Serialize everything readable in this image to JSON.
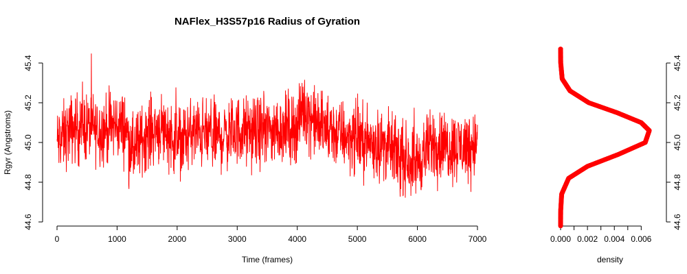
{
  "chart_data": [
    {
      "type": "line",
      "title": "NAFlex_H3S57p16 Radius of Gyration",
      "xlabel": "Time (frames)",
      "ylabel": "Rgyr (Angstroms)",
      "xlim": [
        0,
        7000
      ],
      "ylim": [
        44.6,
        45.4
      ],
      "x_ticks": [
        "0",
        "1000",
        "2000",
        "3000",
        "4000",
        "5000",
        "6000",
        "7000"
      ],
      "y_ticks": [
        "44.6",
        "44.8",
        "45.0",
        "45.2",
        "45.4"
      ],
      "line_color": "#ff0000",
      "series": [
        {
          "x": [
            0,
            250,
            500,
            750,
            1000,
            1150,
            1250,
            1500,
            1750,
            2000,
            2250,
            2500,
            2750,
            3000,
            3250,
            3500,
            3750,
            4000,
            4100,
            4200,
            4300,
            4500,
            4750,
            5000,
            5250,
            5500,
            5750,
            6000,
            6250,
            6500,
            6750,
            7000
          ],
          "values": [
            45.0,
            45.07,
            45.08,
            45.06,
            45.09,
            45.07,
            44.95,
            45.05,
            45.08,
            45.0,
            45.05,
            45.04,
            45.03,
            45.06,
            45.05,
            45.06,
            45.07,
            45.08,
            45.18,
            45.14,
            45.1,
            45.06,
            45.04,
            45.02,
            45.0,
            44.98,
            44.92,
            44.9,
            45.0,
            44.98,
            44.98,
            45.0
          ]
        }
      ]
    },
    {
      "type": "line",
      "title": "",
      "xlabel": "density",
      "ylabel": "",
      "xlim": [
        0,
        0.0068
      ],
      "ylim": [
        44.6,
        45.4
      ],
      "x_ticks": [
        "0.000",
        "0.002",
        "0.004",
        "0.006"
      ],
      "y_ticks": [
        "44.6",
        "44.8",
        "45.0",
        "45.2",
        "45.4"
      ],
      "line_color": "#ff0000",
      "series": [
        {
          "x": [
            0.0,
            1e-05,
            8e-05,
            0.0006,
            0.002,
            0.0043,
            0.0063,
            0.0066,
            0.006,
            0.0042,
            0.0021,
            0.0007,
            0.00012,
            1e-05,
            0.0
          ],
          "values": [
            44.58,
            44.66,
            44.74,
            44.82,
            44.88,
            44.94,
            45.0,
            45.06,
            45.1,
            45.15,
            45.2,
            45.26,
            45.32,
            45.4,
            45.48
          ]
        }
      ]
    }
  ]
}
